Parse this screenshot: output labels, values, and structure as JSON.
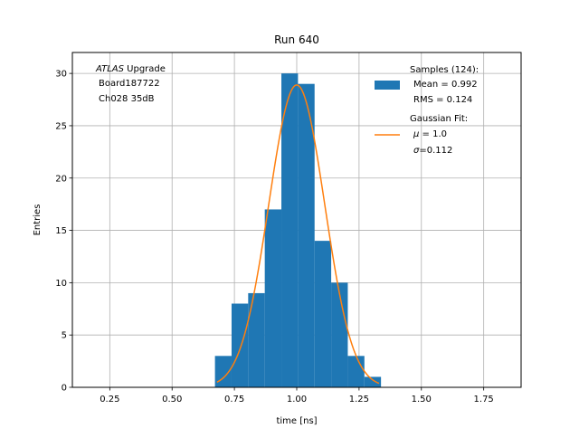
{
  "chart_data": {
    "type": "bar",
    "title": "Run 640",
    "xlabel": "time [ns]",
    "ylabel": "Entries",
    "xlim": [
      0.1,
      1.9
    ],
    "ylim": [
      0,
      32
    ],
    "grid": true,
    "xticks": [
      "0.25",
      "0.50",
      "0.75",
      "1.00",
      "1.25",
      "1.50",
      "1.75"
    ],
    "xtick_values": [
      0.25,
      0.5,
      0.75,
      1.0,
      1.25,
      1.5,
      1.75
    ],
    "yticks": [
      "0",
      "5",
      "10",
      "15",
      "20",
      "25",
      "30"
    ],
    "ytick_values": [
      0,
      5,
      10,
      15,
      20,
      25,
      30
    ],
    "colors": {
      "histogram": "#1f77b4",
      "fit": "#ff7f0e",
      "grid": "#b0b0b0"
    },
    "annotation": {
      "italic": "ATLAS",
      "rest": " Upgrade",
      "line2": "Board187722",
      "line3": "Ch028 35dB"
    },
    "histogram": {
      "name": "Samples (124):",
      "bin_edges": [
        0.672,
        0.7386,
        0.8052,
        0.8718,
        0.9384,
        1.005,
        1.0716,
        1.1382,
        1.2048,
        1.2714,
        1.338
      ],
      "counts": [
        3,
        8,
        9,
        17,
        30,
        29,
        14,
        10,
        3,
        1
      ]
    },
    "fit": {
      "name": "Gaussian Fit:",
      "mu": 1.0,
      "sigma": 0.112,
      "amplitude": 28.9,
      "x_range": [
        0.68,
        1.33
      ]
    },
    "legend": {
      "placement": "upper right",
      "samples_title": "Samples (124):",
      "samples_mean": "Mean = 0.992",
      "samples_rms": "RMS = 0.124",
      "fit_title": "Gaussian Fit:",
      "fit_mu_symbol": "μ",
      "fit_mu_value": " = 1.0",
      "fit_sigma_symbol": "σ",
      "fit_sigma_value": "=0.112"
    }
  }
}
